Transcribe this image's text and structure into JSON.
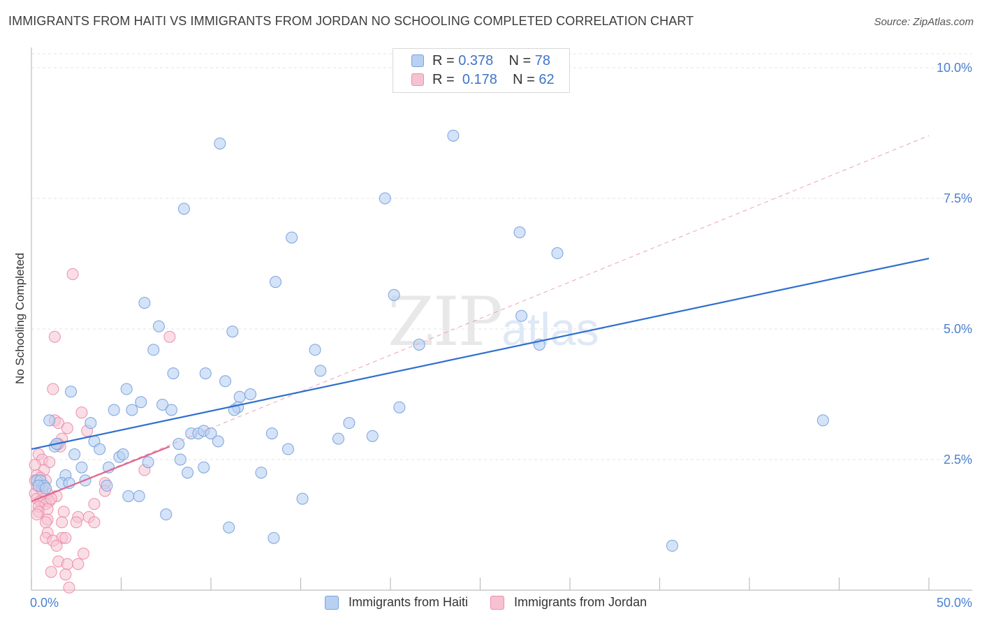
{
  "header": {
    "title": "IMMIGRANTS FROM HAITI VS IMMIGRANTS FROM JORDAN NO SCHOOLING COMPLETED CORRELATION CHART",
    "source": "Source: ZipAtlas.com"
  },
  "legend": {
    "haiti": {
      "r_label": "R =",
      "r_value": "0.378",
      "n_label": "N =",
      "n_value": "78"
    },
    "jordan": {
      "r_label": "R =",
      "r_value": "0.178",
      "n_label": "N =",
      "n_value": "62"
    }
  },
  "bottom_legend": {
    "haiti": "Immigrants from Haiti",
    "jordan": "Immigrants from Jordan"
  },
  "watermark": {
    "zip": "ZIP",
    "atlas": "atlas"
  },
  "colors": {
    "haiti_fill": "#b8d0f2",
    "haiti_stroke": "#7aa3de",
    "haiti_line": "#2f6fce",
    "jordan_fill": "#f6c2d2",
    "jordan_stroke": "#ec8fac",
    "jordan_line": "#e2668f",
    "tick_text": "#4a7fd0",
    "grid": "#e3e3e3"
  },
  "chart_data": {
    "type": "scatter",
    "title": "IMMIGRANTS FROM HAITI VS IMMIGRANTS FROM JORDAN NO SCHOOLING COMPLETED CORRELATION CHART",
    "xlabel": "",
    "ylabel": "No Schooling Completed",
    "xlim": [
      0,
      50
    ],
    "ylim": [
      0,
      10.0
    ],
    "x_tick_labels": [
      "0.0%",
      "50.0%"
    ],
    "y_ticks": [
      2.5,
      5.0,
      7.5,
      10.0
    ],
    "y_tick_labels": [
      "2.5%",
      "5.0%",
      "7.5%",
      "10.0%"
    ],
    "grid": true,
    "legend_position": "top-center",
    "series": [
      {
        "name": "Immigrants from Haiti",
        "points": [
          [
            10.5,
            8.55
          ],
          [
            23.5,
            8.7
          ],
          [
            8.5,
            7.3
          ],
          [
            19.7,
            7.5
          ],
          [
            14.5,
            6.75
          ],
          [
            27.2,
            6.85
          ],
          [
            29.3,
            6.45
          ],
          [
            13.6,
            5.9
          ],
          [
            20.2,
            5.65
          ],
          [
            6.3,
            5.5
          ],
          [
            7.1,
            5.05
          ],
          [
            11.2,
            4.95
          ],
          [
            27.3,
            5.25
          ],
          [
            6.8,
            4.6
          ],
          [
            15.8,
            4.6
          ],
          [
            21.6,
            4.7
          ],
          [
            28.3,
            4.7
          ],
          [
            7.9,
            4.15
          ],
          [
            9.7,
            4.15
          ],
          [
            16.1,
            4.2
          ],
          [
            10.8,
            4.0
          ],
          [
            5.3,
            3.85
          ],
          [
            2.2,
            3.8
          ],
          [
            11.6,
            3.7
          ],
          [
            12.2,
            3.75
          ],
          [
            4.6,
            3.45
          ],
          [
            5.6,
            3.45
          ],
          [
            6.1,
            3.6
          ],
          [
            7.3,
            3.55
          ],
          [
            7.8,
            3.45
          ],
          [
            11.5,
            3.5
          ],
          [
            11.3,
            3.45
          ],
          [
            20.5,
            3.5
          ],
          [
            1.0,
            3.25
          ],
          [
            3.3,
            3.2
          ],
          [
            44.1,
            3.25
          ],
          [
            17.7,
            3.2
          ],
          [
            8.9,
            3.0
          ],
          [
            9.3,
            3.0
          ],
          [
            9.6,
            3.05
          ],
          [
            10.0,
            3.0
          ],
          [
            13.4,
            3.0
          ],
          [
            10.4,
            2.85
          ],
          [
            17.1,
            2.9
          ],
          [
            19.0,
            2.95
          ],
          [
            1.3,
            2.75
          ],
          [
            1.4,
            2.8
          ],
          [
            3.5,
            2.85
          ],
          [
            3.8,
            2.7
          ],
          [
            8.2,
            2.8
          ],
          [
            14.3,
            2.7
          ],
          [
            2.4,
            2.6
          ],
          [
            4.9,
            2.55
          ],
          [
            5.1,
            2.6
          ],
          [
            8.3,
            2.5
          ],
          [
            4.3,
            2.35
          ],
          [
            6.5,
            2.45
          ],
          [
            9.6,
            2.35
          ],
          [
            2.8,
            2.35
          ],
          [
            8.7,
            2.25
          ],
          [
            12.8,
            2.25
          ],
          [
            0.3,
            2.1
          ],
          [
            0.5,
            2.1
          ],
          [
            0.7,
            2.0
          ],
          [
            1.9,
            2.2
          ],
          [
            1.7,
            2.05
          ],
          [
            3.0,
            2.1
          ],
          [
            2.1,
            2.05
          ],
          [
            4.2,
            2.0
          ],
          [
            5.4,
            1.8
          ],
          [
            6.0,
            1.8
          ],
          [
            15.1,
            1.75
          ],
          [
            7.5,
            1.45
          ],
          [
            11.0,
            1.2
          ],
          [
            13.5,
            1.0
          ],
          [
            35.7,
            0.85
          ],
          [
            0.4,
            2.0
          ],
          [
            0.8,
            1.95
          ]
        ],
        "trend": {
          "x": [
            0,
            50
          ],
          "y": [
            2.7,
            6.35
          ]
        }
      },
      {
        "name": "Immigrants from Jordan",
        "points": [
          [
            2.3,
            6.05
          ],
          [
            1.3,
            4.85
          ],
          [
            7.7,
            4.85
          ],
          [
            1.2,
            3.85
          ],
          [
            2.8,
            3.4
          ],
          [
            1.3,
            3.25
          ],
          [
            1.5,
            3.2
          ],
          [
            2.0,
            3.1
          ],
          [
            3.1,
            3.05
          ],
          [
            1.7,
            2.9
          ],
          [
            1.6,
            2.75
          ],
          [
            1.5,
            2.8
          ],
          [
            0.4,
            2.6
          ],
          [
            0.6,
            2.5
          ],
          [
            1.0,
            2.45
          ],
          [
            0.2,
            2.4
          ],
          [
            0.7,
            2.3
          ],
          [
            6.3,
            2.3
          ],
          [
            0.3,
            2.2
          ],
          [
            0.5,
            2.15
          ],
          [
            0.8,
            2.1
          ],
          [
            0.3,
            2.0
          ],
          [
            0.6,
            1.95
          ],
          [
            4.1,
            2.05
          ],
          [
            0.2,
            1.85
          ],
          [
            0.9,
            1.85
          ],
          [
            1.4,
            1.8
          ],
          [
            4.1,
            1.9
          ],
          [
            0.3,
            1.75
          ],
          [
            0.5,
            1.7
          ],
          [
            0.7,
            1.7
          ],
          [
            1.0,
            1.7
          ],
          [
            0.8,
            1.65
          ],
          [
            3.5,
            1.65
          ],
          [
            0.4,
            1.6
          ],
          [
            0.9,
            1.55
          ],
          [
            0.4,
            1.5
          ],
          [
            1.8,
            1.5
          ],
          [
            0.9,
            1.35
          ],
          [
            2.6,
            1.4
          ],
          [
            3.2,
            1.4
          ],
          [
            0.8,
            1.3
          ],
          [
            1.7,
            1.3
          ],
          [
            2.5,
            1.3
          ],
          [
            3.5,
            1.3
          ],
          [
            0.9,
            1.1
          ],
          [
            1.7,
            1.0
          ],
          [
            1.9,
            1.0
          ],
          [
            0.8,
            1.0
          ],
          [
            1.2,
            0.95
          ],
          [
            1.4,
            0.85
          ],
          [
            2.9,
            0.7
          ],
          [
            1.5,
            0.55
          ],
          [
            2.0,
            0.5
          ],
          [
            2.6,
            0.5
          ],
          [
            1.1,
            0.35
          ],
          [
            1.9,
            0.3
          ],
          [
            2.1,
            0.05
          ],
          [
            0.2,
            2.1
          ],
          [
            0.6,
            1.9
          ],
          [
            1.1,
            1.75
          ],
          [
            0.3,
            1.45
          ]
        ],
        "trend": {
          "x": [
            0,
            7.7
          ],
          "y": [
            1.7,
            2.75
          ]
        },
        "trend_extended": {
          "x": [
            0,
            50
          ],
          "y": [
            1.7,
            8.7
          ]
        }
      }
    ]
  }
}
